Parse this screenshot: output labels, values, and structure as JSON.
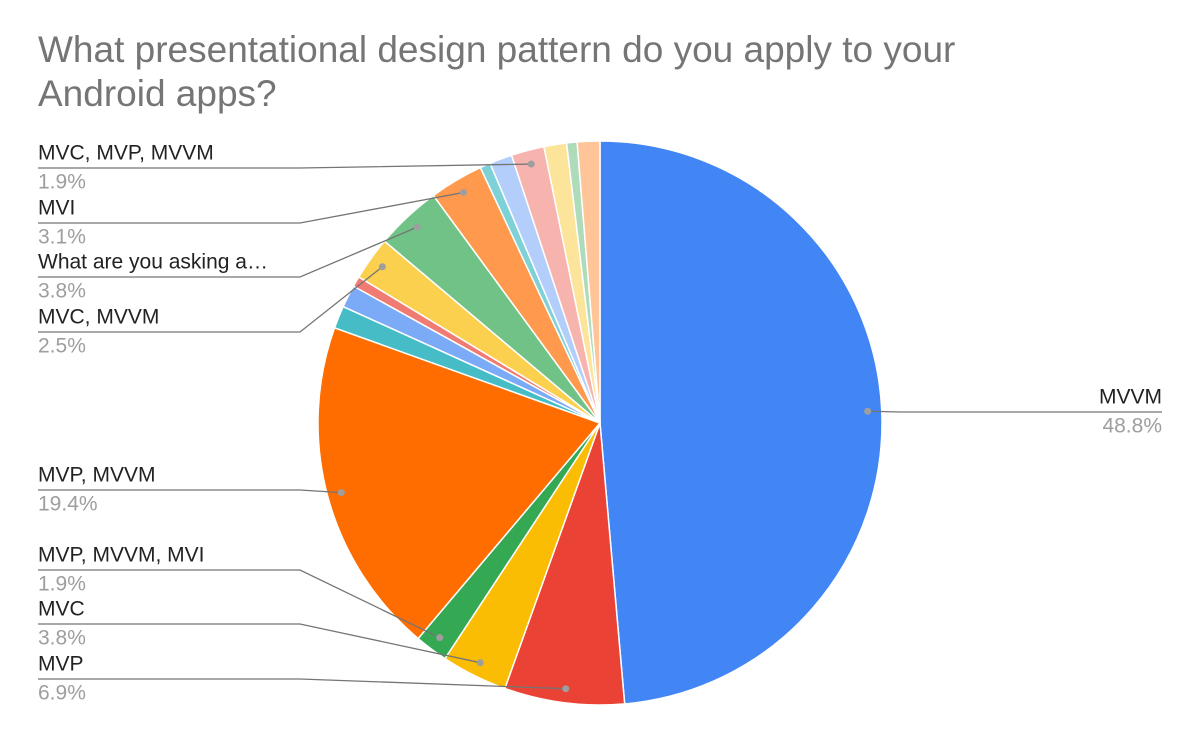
{
  "chart_data": {
    "type": "pie",
    "title": "What presentational design pattern do you apply to your Android apps?",
    "categories": [
      "MVVM",
      "MVP",
      "MVC",
      "MVP, MVVM, MVI",
      "MVP, MVVM",
      null,
      null,
      null,
      "MVC, MVVM",
      "What are you asking a…",
      "MVI",
      null,
      null,
      "MVC, MVP, MVVM",
      null,
      null,
      null
    ],
    "values": [
      48.8,
      6.9,
      3.8,
      1.9,
      19.4,
      1.3,
      1.3,
      0.6,
      2.5,
      3.8,
      3.1,
      0.6,
      1.3,
      1.9,
      1.3,
      0.6,
      1.3
    ],
    "value_labels": [
      "48.8%",
      "6.9%",
      "3.8%",
      "1.9%",
      "19.4%",
      null,
      null,
      null,
      "2.5%",
      "3.8%",
      "3.1%",
      null,
      null,
      "1.9%",
      null,
      null,
      null
    ],
    "colors": [
      "#4285f4",
      "#ea4335",
      "#fbbc04",
      "#34a853",
      "#ff6d01",
      "#46bdc6",
      "#7baaf7",
      "#f07b72",
      "#fcd04f",
      "#71c287",
      "#ff994d",
      "#7ed1d7",
      "#b3cefb",
      "#f7b4ae",
      "#fde49b",
      "#aedcba",
      "#ffc599"
    ]
  }
}
